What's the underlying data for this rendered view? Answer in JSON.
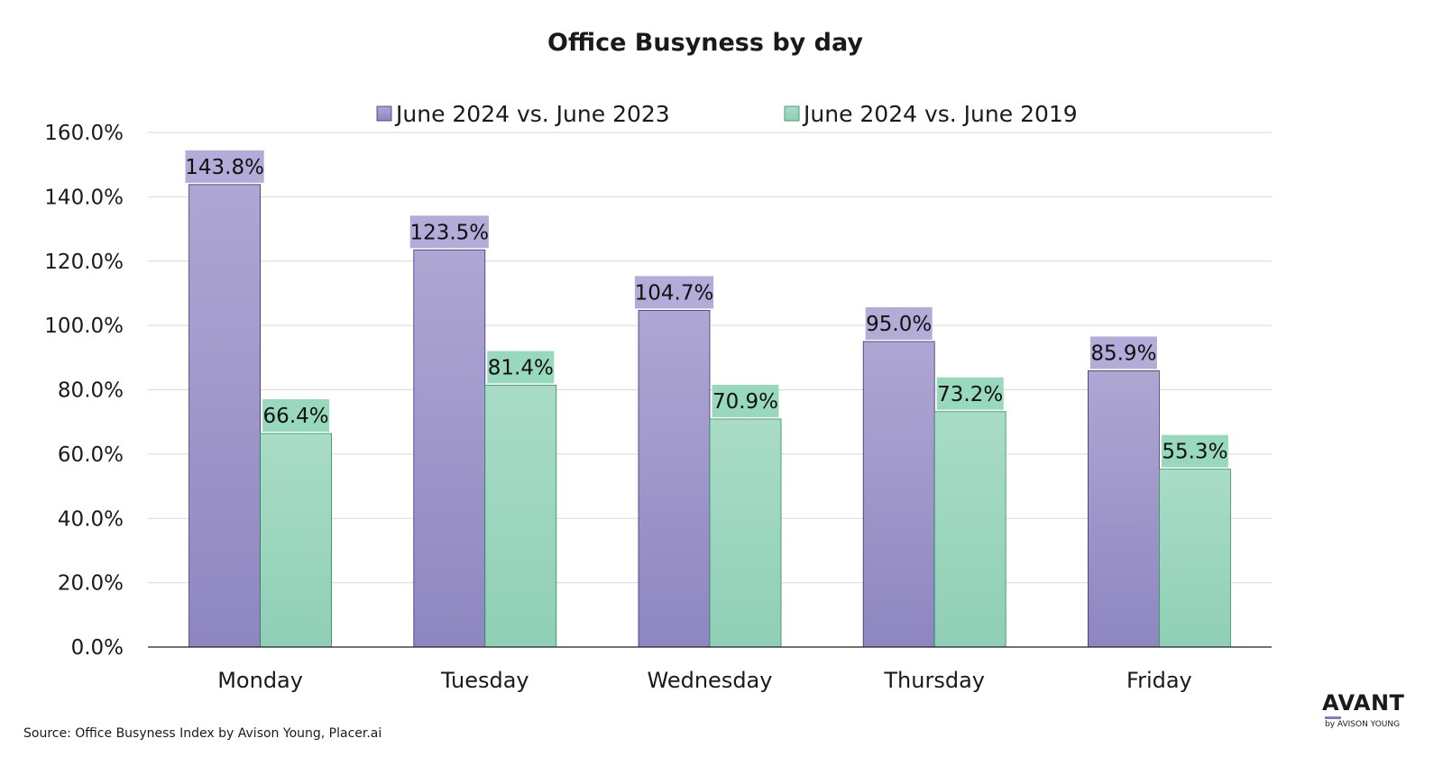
{
  "chart_data": {
    "type": "bar",
    "title": "Office Busyness by day",
    "categories": [
      "Monday",
      "Tuesday",
      "Wednesday",
      "Thursday",
      "Friday"
    ],
    "series": [
      {
        "name": "June 2024 vs. June 2023",
        "values": [
          143.8,
          123.5,
          104.7,
          95.0,
          85.9
        ],
        "labels": [
          "143.8%",
          "123.5%",
          "104.7%",
          "95.0%",
          "85.9%"
        ],
        "color_top": "#aea7d3",
        "color_bottom": "#8e86c0",
        "border": "#3a2f7a",
        "label_bg": "#b3acd8"
      },
      {
        "name": "June 2024 vs. June 2019",
        "values": [
          66.4,
          81.4,
          70.9,
          73.2,
          55.3
        ],
        "labels": [
          "66.4%",
          "81.4%",
          "70.9%",
          "73.2%",
          "55.3%"
        ],
        "color_top": "#a9dcc7",
        "color_bottom": "#8fcfb5",
        "border": "#2e8a63",
        "label_bg": "#98d8bc"
      }
    ],
    "ylim": [
      0,
      160
    ],
    "yticks": [
      0,
      20,
      40,
      60,
      80,
      100,
      120,
      140,
      160
    ],
    "ytick_labels": [
      "0.0%",
      "20.0%",
      "40.0%",
      "60.0%",
      "80.0%",
      "100.0%",
      "120.0%",
      "140.0%",
      "160.0%"
    ],
    "xlabel": "",
    "ylabel": "",
    "grid": true,
    "legend_position": "top"
  },
  "footer": {
    "source": "Source: Office Busyness Index by Avison Young, Placer.ai"
  },
  "brand": {
    "name": "AVANT",
    "tagline": "by AVISON YOUNG",
    "accent": "#8878c0"
  }
}
